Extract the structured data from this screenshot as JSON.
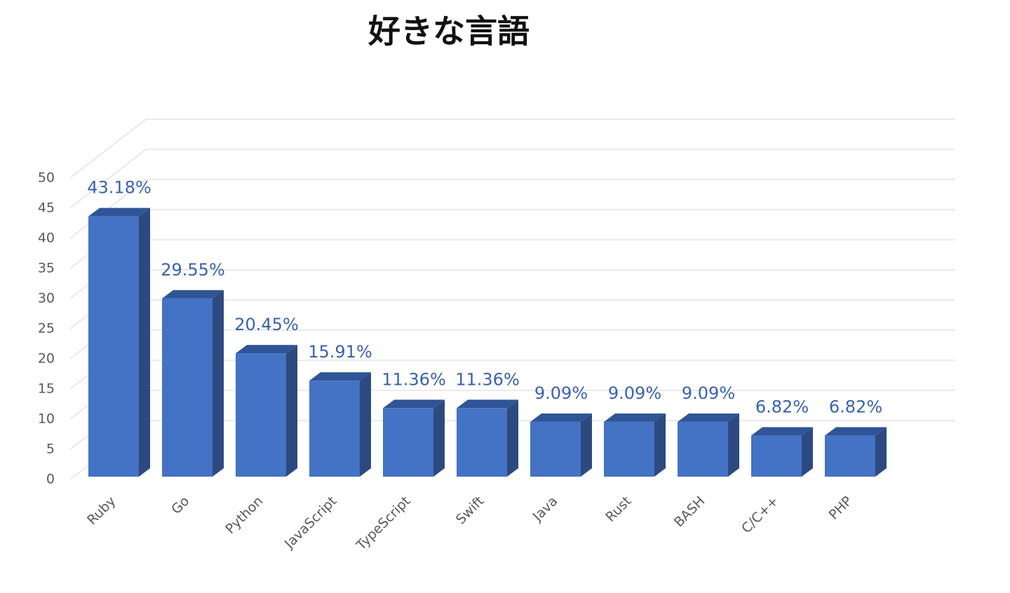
{
  "chart_data": {
    "type": "bar3d",
    "title": "好きな言語",
    "categories": [
      "Ruby",
      "Go",
      "Python",
      "JavaScript",
      "TypeScript",
      "Swift",
      "Java",
      "Rust",
      "BASH",
      "C/C++",
      "PHP"
    ],
    "values": [
      43.18,
      29.55,
      20.45,
      15.91,
      11.36,
      11.36,
      9.09,
      9.09,
      9.09,
      6.82,
      6.82
    ],
    "value_labels": [
      "43.18%",
      "29.55%",
      "20.45%",
      "15.91%",
      "11.36%",
      "11.36%",
      "9.09%",
      "9.09%",
      "9.09%",
      "6.82%",
      "6.82%"
    ],
    "color": "#4472c4",
    "ylim": [
      0,
      50
    ],
    "yticks": [
      0,
      5,
      10,
      15,
      20,
      25,
      30,
      35,
      40,
      45,
      50
    ],
    "grid": true
  }
}
